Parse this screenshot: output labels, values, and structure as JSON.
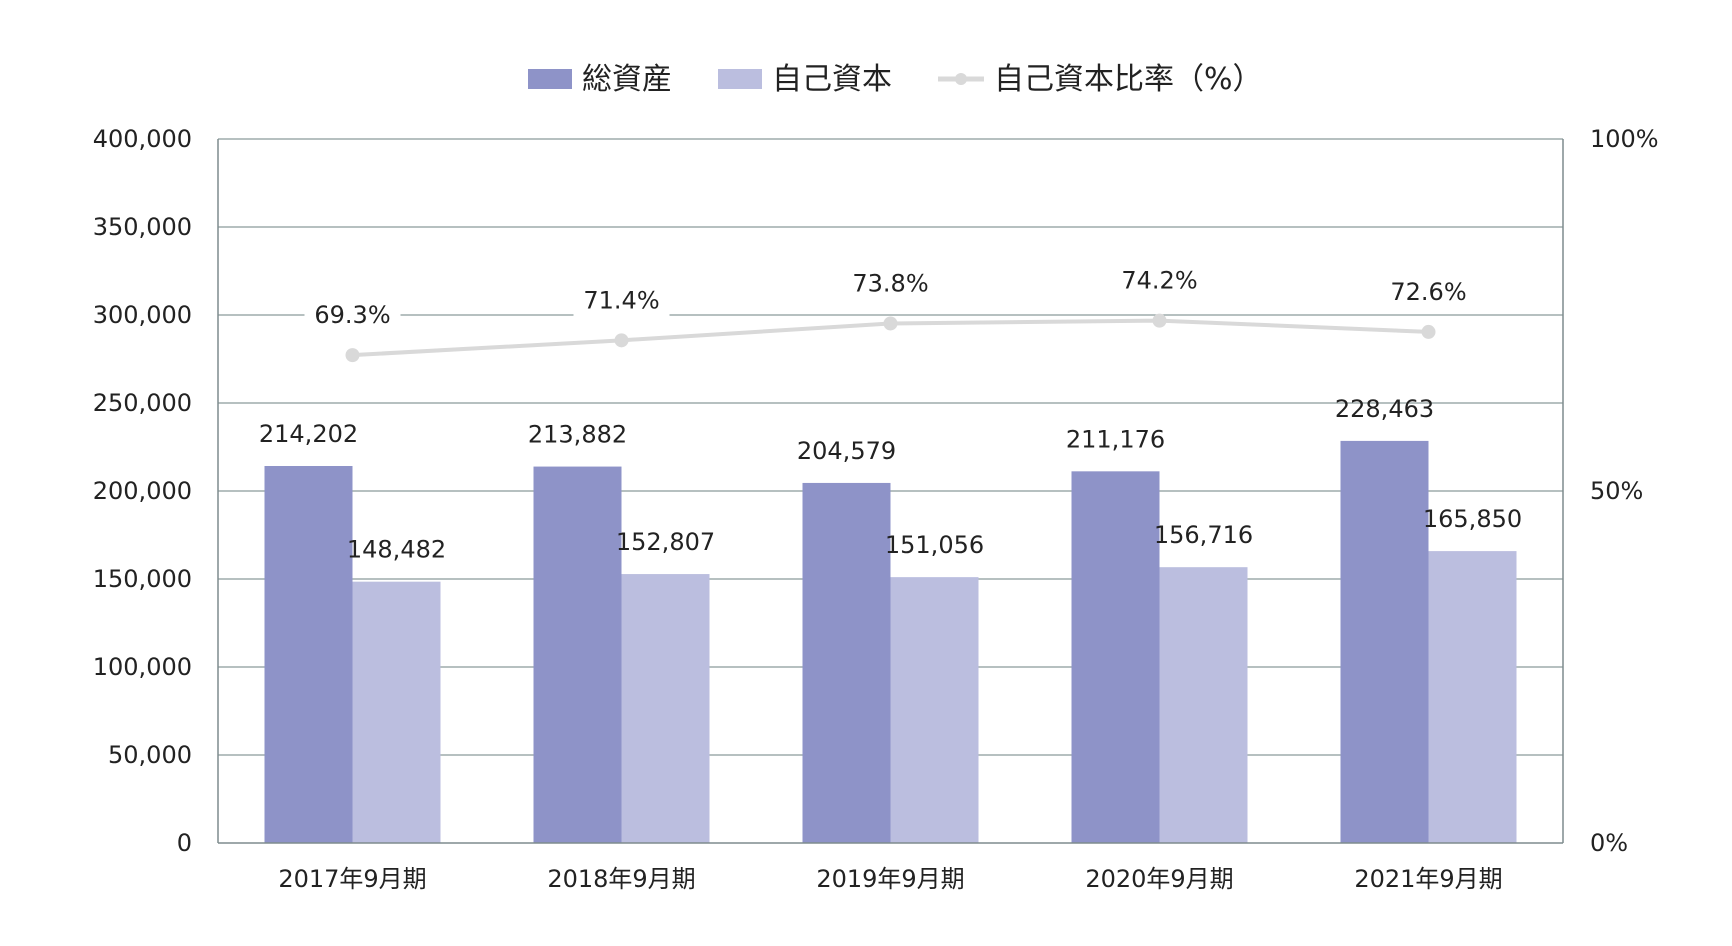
{
  "chart_data": {
    "type": "bar",
    "title": "",
    "xlabel": "",
    "ylabel": "",
    "categories": [
      "2017年9月期",
      "2018年9月期",
      "2019年9月期",
      "2020年9月期",
      "2021年9月期"
    ],
    "series": [
      {
        "name": "総資産",
        "type": "bar",
        "axis": "left",
        "color": "#8e93c8",
        "values": [
          214202,
          213882,
          204579,
          211176,
          228463
        ],
        "labels": [
          "214,202",
          "213,882",
          "204,579",
          "211,176",
          "228,463"
        ]
      },
      {
        "name": "自己資本",
        "type": "bar",
        "axis": "left",
        "color": "#bbbedf",
        "values": [
          148482,
          152807,
          151056,
          156716,
          165850
        ],
        "labels": [
          "148,482",
          "152,807",
          "151,056",
          "156,716",
          "165,850"
        ]
      },
      {
        "name": "自己資本比率（%）",
        "type": "line",
        "axis": "right",
        "color": "#d9d9d9",
        "values": [
          69.3,
          71.4,
          73.8,
          74.2,
          72.6
        ],
        "labels": [
          "69.3%",
          "71.4%",
          "73.8%",
          "74.2%",
          "72.6%"
        ]
      }
    ],
    "ylim": [
      0,
      400000
    ],
    "y2lim": [
      0,
      100
    ],
    "yticks": [
      "0",
      "50,000",
      "100,000",
      "150,000",
      "200,000",
      "250,000",
      "300,000",
      "350,000",
      "400,000"
    ],
    "y2ticks": [
      "0%",
      "50%",
      "100%"
    ],
    "grid": true,
    "legend_position": "top-center"
  }
}
